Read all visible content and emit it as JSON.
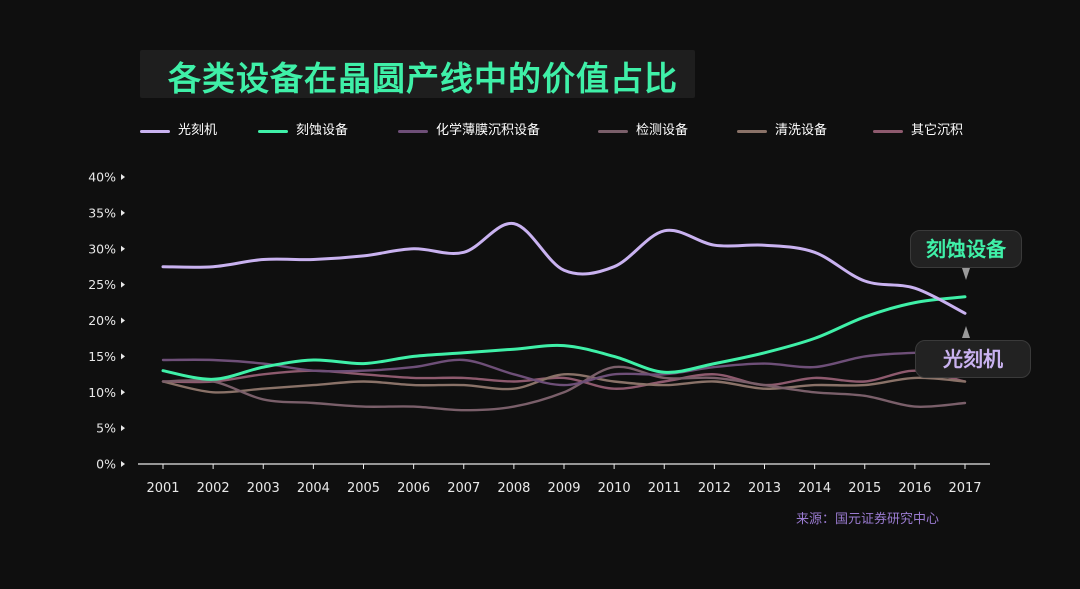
{
  "title": "各类设备在晶圆产线中的价值占比",
  "source": "来源：国元证券研究中心",
  "tags": {
    "etch": "刻蚀设备",
    "litho": "光刻机"
  },
  "colors": {
    "background": "#0f0f0f",
    "title": "#3ff0a8",
    "axis": "#e8e8e8",
    "source": "#9a7bd0"
  },
  "chart_data": {
    "type": "line",
    "x": [
      "2001",
      "2002",
      "2003",
      "2004",
      "2005",
      "2006",
      "2007",
      "2008",
      "2009",
      "2010",
      "2011",
      "2012",
      "2013",
      "2014",
      "2015",
      "2016",
      "2017"
    ],
    "ylim": [
      0,
      40
    ],
    "yticks": [
      "0%",
      "5%",
      "10%",
      "15%",
      "20%",
      "25%",
      "30%",
      "35%",
      "40%"
    ],
    "legend_position": "top",
    "grid": false,
    "series": [
      {
        "name": "光刻机",
        "color": "#c9b2f0",
        "values": [
          27.5,
          27.5,
          28.5,
          28.5,
          29,
          30,
          29.5,
          33.5,
          27,
          27.5,
          32.5,
          30.5,
          30.5,
          29.5,
          25.5,
          24.5,
          21
        ]
      },
      {
        "name": "刻蚀设备",
        "color": "#3ff0a8",
        "values": [
          13,
          11.8,
          13.5,
          14.5,
          14,
          15,
          15.5,
          16,
          16.5,
          15,
          12.8,
          14,
          15.5,
          17.5,
          20.5,
          22.5,
          23.3
        ]
      },
      {
        "name": "化学薄膜沉积设备",
        "color": "#6e4f78",
        "values": [
          14.5,
          14.5,
          14,
          13,
          13,
          13.5,
          14.5,
          12.5,
          11,
          12.5,
          12.5,
          13.5,
          14,
          13.5,
          15,
          15.5,
          15.5
        ]
      },
      {
        "name": "检测设备",
        "color": "#7a5f6a",
        "values": [
          11.5,
          11.5,
          9,
          8.5,
          8,
          8,
          7.5,
          8,
          10,
          13.5,
          12,
          12,
          11,
          10,
          9.5,
          8,
          8.5
        ]
      },
      {
        "name": "清洗设备",
        "color": "#8a7268",
        "values": [
          11.5,
          10,
          10.5,
          11,
          11.5,
          11,
          11,
          10.5,
          12.5,
          11.5,
          11,
          11.5,
          10.5,
          11,
          11,
          12,
          11.5
        ]
      },
      {
        "name": "其它沉积",
        "color": "#8e5a6e",
        "values": [
          11.5,
          11.5,
          12.5,
          13,
          12.5,
          12,
          12,
          11.5,
          12,
          10.5,
          11.5,
          12.5,
          11,
          12,
          11.5,
          13,
          11.5
        ]
      }
    ]
  }
}
